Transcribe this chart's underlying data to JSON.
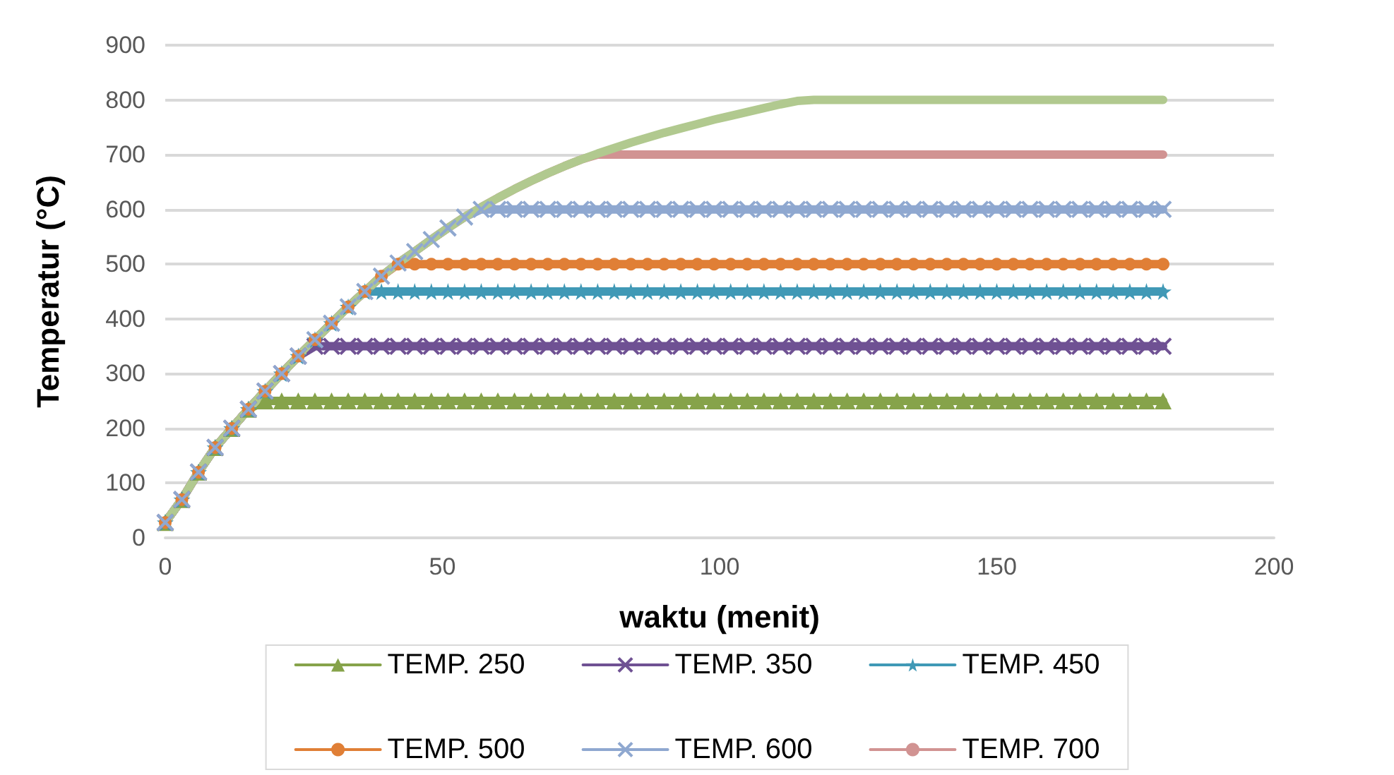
{
  "chart_data": {
    "type": "line",
    "xlabel": "waktu (menit)",
    "ylabel": "Temperatur (°C)",
    "x": [
      0,
      3,
      6,
      9,
      12,
      15,
      18,
      21,
      24,
      27,
      30,
      33,
      36,
      39,
      42,
      45,
      48,
      51,
      54,
      57,
      60,
      63,
      66,
      69,
      72,
      75,
      78,
      81,
      84,
      87,
      90,
      93,
      96,
      99,
      102,
      105,
      108,
      111,
      114,
      117,
      120,
      123,
      126,
      129,
      132,
      135,
      138,
      141,
      144,
      147,
      150,
      153,
      156,
      159,
      162,
      165,
      168,
      171,
      174,
      177,
      180
    ],
    "xlim": [
      0,
      200
    ],
    "xticks": [
      0,
      50,
      100,
      150,
      200
    ],
    "ylim": [
      0,
      900
    ],
    "yticks": [
      0,
      100,
      200,
      300,
      400,
      500,
      600,
      700,
      800,
      900
    ],
    "grid": "y",
    "legend": "bottom",
    "line_style": "solid",
    "series": [
      {
        "name": "TEMP. 250",
        "color": "#86a34a",
        "marker": "triangle",
        "values": [
          28,
          70,
          120,
          165,
          200,
          235,
          250,
          250,
          250,
          250,
          250,
          250,
          250,
          250,
          250,
          250,
          250,
          250,
          250,
          250,
          250,
          250,
          250,
          250,
          250,
          250,
          250,
          250,
          250,
          250,
          250,
          250,
          250,
          250,
          250,
          250,
          250,
          250,
          250,
          250,
          250,
          250,
          250,
          250,
          250,
          250,
          250,
          250,
          250,
          250,
          250,
          250,
          250,
          250,
          250,
          250,
          250,
          250,
          250,
          250,
          250
        ]
      },
      {
        "name": "TEMP. 350",
        "color": "#6f5193",
        "marker": "cross",
        "values": [
          28,
          70,
          120,
          165,
          200,
          235,
          268,
          300,
          332,
          350,
          350,
          350,
          350,
          350,
          350,
          350,
          350,
          350,
          350,
          350,
          350,
          350,
          350,
          350,
          350,
          350,
          350,
          350,
          350,
          350,
          350,
          350,
          350,
          350,
          350,
          350,
          350,
          350,
          350,
          350,
          350,
          350,
          350,
          350,
          350,
          350,
          350,
          350,
          350,
          350,
          350,
          350,
          350,
          350,
          350,
          350,
          350,
          350,
          350,
          350,
          350
        ]
      },
      {
        "name": "TEMP. 450",
        "color": "#4099b6",
        "marker": "star",
        "values": [
          28,
          70,
          120,
          165,
          200,
          235,
          268,
          300,
          332,
          362,
          392,
          422,
          450,
          450,
          450,
          450,
          450,
          450,
          450,
          450,
          450,
          450,
          450,
          450,
          450,
          450,
          450,
          450,
          450,
          450,
          450,
          450,
          450,
          450,
          450,
          450,
          450,
          450,
          450,
          450,
          450,
          450,
          450,
          450,
          450,
          450,
          450,
          450,
          450,
          450,
          450,
          450,
          450,
          450,
          450,
          450,
          450,
          450,
          450,
          450,
          450
        ]
      },
      {
        "name": "TEMP. 500",
        "color": "#e07f36",
        "marker": "circle",
        "values": [
          28,
          70,
          120,
          165,
          200,
          235,
          268,
          300,
          332,
          362,
          392,
          422,
          450,
          478,
          500,
          500,
          500,
          500,
          500,
          500,
          500,
          500,
          500,
          500,
          500,
          500,
          500,
          500,
          500,
          500,
          500,
          500,
          500,
          500,
          500,
          500,
          500,
          500,
          500,
          500,
          500,
          500,
          500,
          500,
          500,
          500,
          500,
          500,
          500,
          500,
          500,
          500,
          500,
          500,
          500,
          500,
          500,
          500,
          500,
          500,
          500
        ]
      },
      {
        "name": "TEMP. 600",
        "color": "#8fa8d0",
        "marker": "cross",
        "values": [
          28,
          70,
          120,
          165,
          200,
          235,
          268,
          300,
          332,
          362,
          392,
          422,
          450,
          478,
          502,
          523,
          545,
          566,
          586,
          600,
          600,
          600,
          600,
          600,
          600,
          600,
          600,
          600,
          600,
          600,
          600,
          600,
          600,
          600,
          600,
          600,
          600,
          600,
          600,
          600,
          600,
          600,
          600,
          600,
          600,
          600,
          600,
          600,
          600,
          600,
          600,
          600,
          600,
          600,
          600,
          600,
          600,
          600,
          600,
          600,
          600
        ]
      },
      {
        "name": "TEMP. 700",
        "color": "#d19392",
        "marker": "none",
        "values": [
          28,
          70,
          120,
          165,
          200,
          235,
          268,
          300,
          332,
          362,
          392,
          422,
          450,
          478,
          502,
          523,
          545,
          566,
          586,
          604,
          621,
          637,
          652,
          666,
          679,
          691,
          700,
          700,
          700,
          700,
          700,
          700,
          700,
          700,
          700,
          700,
          700,
          700,
          700,
          700,
          700,
          700,
          700,
          700,
          700,
          700,
          700,
          700,
          700,
          700,
          700,
          700,
          700,
          700,
          700,
          700,
          700,
          700,
          700,
          700,
          700
        ]
      },
      {
        "color": "#b1c98f",
        "marker": "none",
        "values": [
          28,
          70,
          120,
          165,
          200,
          235,
          268,
          300,
          332,
          362,
          392,
          422,
          450,
          478,
          502,
          523,
          545,
          566,
          586,
          604,
          621,
          637,
          652,
          666,
          679,
          691,
          702,
          712,
          722,
          731,
          740,
          748,
          756,
          764,
          771,
          778,
          785,
          792,
          798,
          800,
          800,
          800,
          800,
          800,
          800,
          800,
          800,
          800,
          800,
          800,
          800,
          800,
          800,
          800,
          800,
          800,
          800,
          800,
          800,
          800,
          800
        ]
      }
    ]
  }
}
